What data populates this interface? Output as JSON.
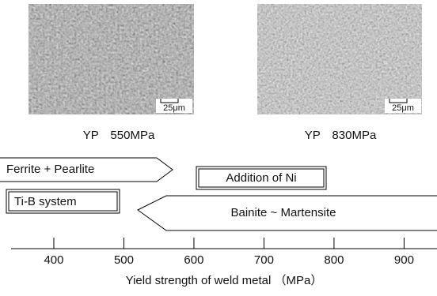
{
  "micrographs": [
    {
      "scale": "25μm",
      "caption": "YP　550MPa"
    },
    {
      "scale": "25μm",
      "caption": "YP　830MPa"
    }
  ],
  "regions": {
    "ferrite_pearlite": "Ferrite + Pearlite",
    "addition_ni": "Addition of Ni",
    "ti_b": "Ti-B system",
    "bainite_martensite": "Bainite ~ Martensite"
  },
  "axis": {
    "xlim": [
      339,
      947
    ],
    "xticks": [
      400,
      500,
      600,
      700,
      800,
      900
    ],
    "label": "Yield strength of weld metal （MPa）"
  }
}
